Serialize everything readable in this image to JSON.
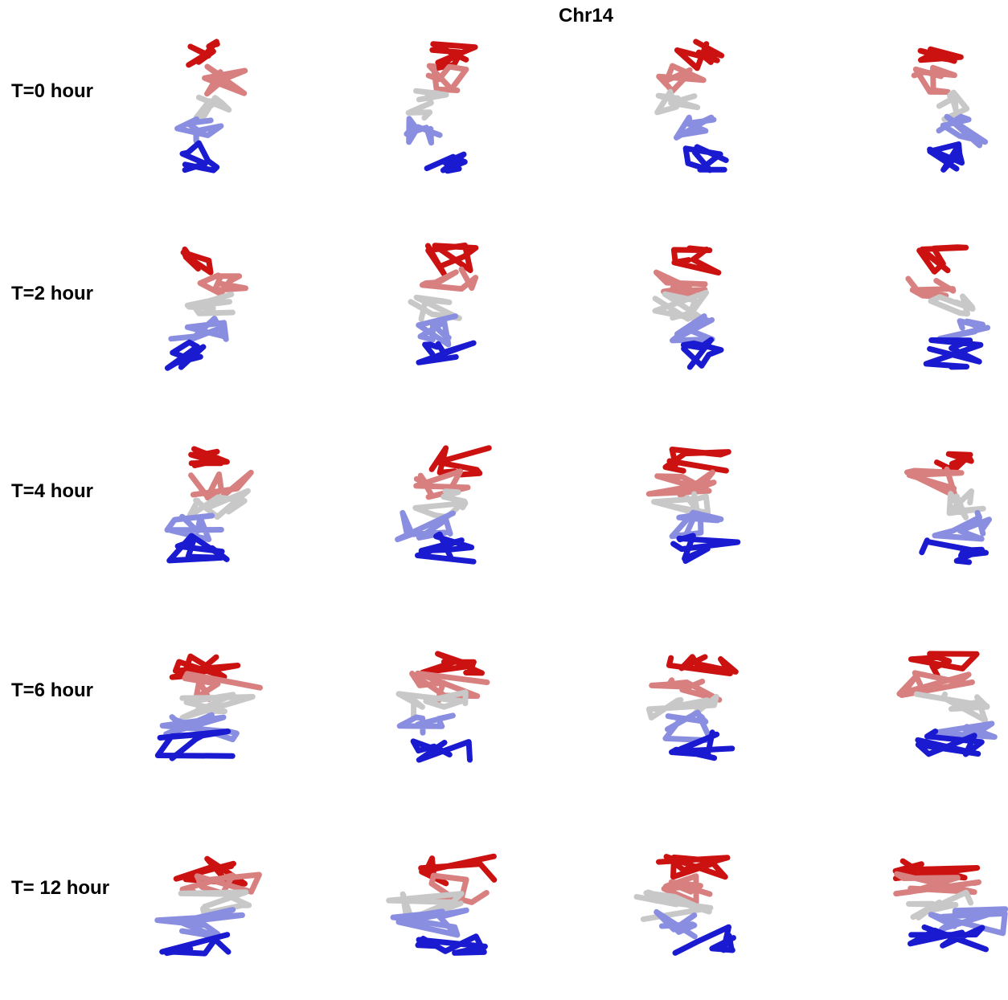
{
  "figure": {
    "title": "Chr14"
  },
  "rows": [
    {
      "label": "T=0 hour"
    },
    {
      "label": "T=2 hour"
    },
    {
      "label": "T=4 hour"
    },
    {
      "label": "T=6 hour"
    },
    {
      "label": "T= 12 hour"
    }
  ],
  "columns": 4,
  "colors": {
    "red": "#cc1111",
    "light_red": "#d88080",
    "gray": "#c8c8c8",
    "light_blue": "#8a8ee0",
    "blue": "#1a1ad0"
  }
}
